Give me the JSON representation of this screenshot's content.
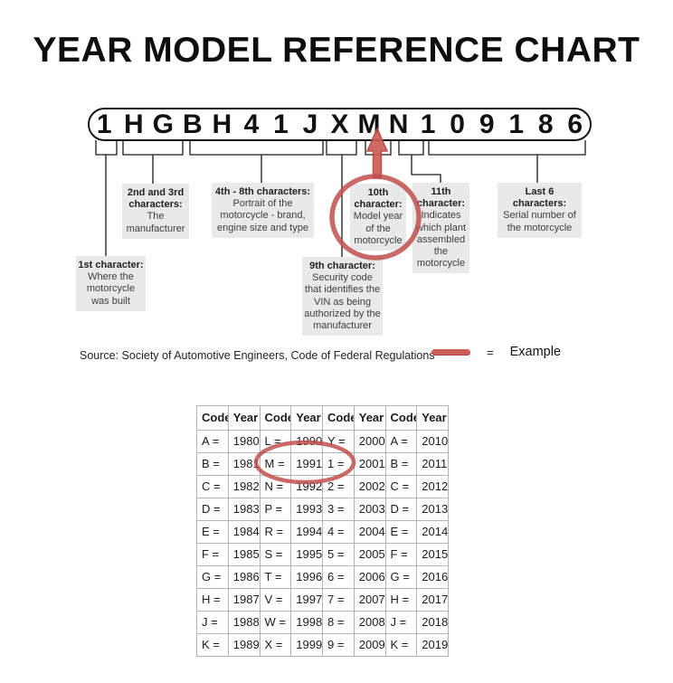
{
  "title": "YEAR MODEL REFERENCE CHART",
  "colors": {
    "accent_red": "#c0504d",
    "arrow_fill": "#cd5c56",
    "arrow_stroke": "#b2453f",
    "box_bg": "#e9e9e9"
  },
  "vin": {
    "characters": [
      "1",
      "H",
      "G",
      "B",
      "H",
      "4",
      "1",
      "J",
      "X",
      "M",
      "N",
      "1",
      "0",
      "9",
      "1",
      "8",
      "6"
    ],
    "highlighted_character": "M",
    "highlighted_position": "10th"
  },
  "callouts": [
    {
      "id": "first",
      "title": "1st character:",
      "body": "Where the motorcycle was built"
    },
    {
      "id": "second-third",
      "title": "2nd and 3rd characters:",
      "body": "The manufacturer"
    },
    {
      "id": "fourth-eighth",
      "title": "4th - 8th characters:",
      "body": "Portrait of the motorcycle - brand, engine size and type"
    },
    {
      "id": "ninth",
      "title": "9th character:",
      "body": "Security code that identifies the VIN as being authorized by the manufacturer"
    },
    {
      "id": "tenth",
      "title": "10th character:",
      "body": "Model year of the motorcycle",
      "highlighted": true
    },
    {
      "id": "eleventh",
      "title": "11th character:",
      "body": "Indicates which plant assembled the motorcycle"
    },
    {
      "id": "last-six",
      "title": "Last 6 characters:",
      "body": "Serial number of the motorcycle"
    }
  ],
  "source_line": "Source:  Society of Automotive Engineers, Code of Federal Regulations",
  "legend": {
    "equals": "=",
    "label": "Example"
  },
  "year_table": {
    "headers": [
      "Code",
      "Year",
      "Code",
      "Year",
      "Code",
      "Year",
      "Code",
      "Year"
    ],
    "rows": [
      [
        "A =",
        "1980",
        "L =",
        "1990",
        "Y =",
        "2000",
        "A =",
        "2010"
      ],
      [
        "B =",
        "1981",
        "M =",
        "1991",
        "1 =",
        "2001",
        "B =",
        "2011"
      ],
      [
        "C =",
        "1982",
        "N =",
        "1992",
        "2 =",
        "2002",
        "C =",
        "2012"
      ],
      [
        "D =",
        "1983",
        "P =",
        "1993",
        "3 =",
        "2003",
        "D =",
        "2013"
      ],
      [
        "E =",
        "1984",
        "R =",
        "1994",
        "4 =",
        "2004",
        "E =",
        "2014"
      ],
      [
        "F =",
        "1985",
        "S =",
        "1995",
        "5 =",
        "2005",
        "F =",
        "2015"
      ],
      [
        "G =",
        "1986",
        "T =",
        "1996",
        "6 =",
        "2006",
        "G =",
        "2016"
      ],
      [
        "H =",
        "1987",
        "V =",
        "1997",
        "7 =",
        "2007",
        "H =",
        "2017"
      ],
      [
        "J =",
        "1988",
        "W =",
        "1998",
        "8 =",
        "2008",
        "J =",
        "2018"
      ],
      [
        "K =",
        "1989",
        "X =",
        "1999",
        "9 =",
        "2009",
        "K =",
        "2019"
      ]
    ],
    "highlighted_entry": "M = 1991"
  }
}
